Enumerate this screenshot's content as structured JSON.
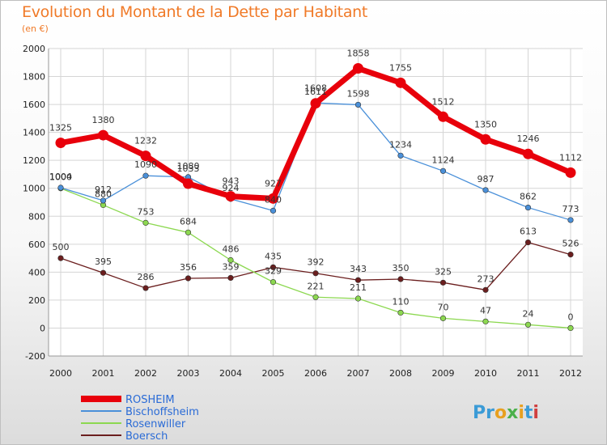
{
  "title": "Evolution du Montant de la Dette par Habitant",
  "subtitle": "(en €)",
  "brand": "Proxiti",
  "chart_data": {
    "type": "line",
    "x": [
      "2000",
      "2001",
      "2002",
      "2003",
      "2004",
      "2005",
      "2006",
      "2007",
      "2008",
      "2009",
      "2010",
      "2011",
      "2012"
    ],
    "ylim": [
      -200,
      2000
    ],
    "yticks": [
      -200,
      0,
      200,
      400,
      600,
      800,
      1000,
      1200,
      1400,
      1600,
      1800,
      2000
    ],
    "grid": true,
    "legend_position": "bottom-left",
    "series": [
      {
        "name": "ROSHEIM",
        "color": "#e8000b",
        "values": [
          1325,
          1380,
          1232,
          1033,
          943,
          927,
          1608,
          1858,
          1755,
          1512,
          1350,
          1246,
          1112
        ]
      },
      {
        "name": "Bischoffsheim",
        "color": "#4a90d9",
        "values": [
          1004,
          912,
          1090,
          1080,
          924,
          840,
          1611,
          1598,
          1234,
          1124,
          987,
          862,
          773
        ]
      },
      {
        "name": "Rosenwiller",
        "color": "#8cd850",
        "values": [
          1000,
          880,
          753,
          684,
          486,
          329,
          221,
          211,
          110,
          70,
          47,
          24,
          0
        ]
      },
      {
        "name": "Boersch",
        "color": "#6b1e1e",
        "values": [
          500,
          395,
          286,
          356,
          359,
          435,
          392,
          343,
          350,
          325,
          273,
          613,
          526
        ]
      }
    ]
  }
}
